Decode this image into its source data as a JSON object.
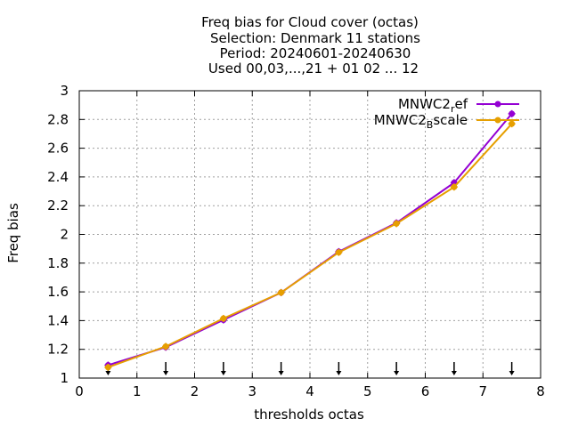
{
  "chart_data": {
    "type": "line",
    "title_lines": [
      "Freq bias  for Cloud cover (octas)",
      "Selection: Denmark     11 stations",
      "Period: 20240601-20240630",
      "Used 00,03,...,21 + 01 02 ... 12"
    ],
    "xlabel": "thresholds octas",
    "ylabel": "Freq bias",
    "xlim": [
      0,
      8
    ],
    "ylim": [
      1,
      3
    ],
    "xticks": [
      "0",
      "1",
      "2",
      "3",
      "4",
      "5",
      "6",
      "7",
      "8"
    ],
    "yticks": [
      "1",
      "1.2",
      "1.4",
      "1.6",
      "1.8",
      "2",
      "2.2",
      "2.4",
      "2.6",
      "2.8",
      "3"
    ],
    "grid": true,
    "legend_position": "top-right",
    "x": [
      0.5,
      1.5,
      2.5,
      3.5,
      4.5,
      5.5,
      6.5,
      7.5
    ],
    "series": [
      {
        "name_main": "MNWC2",
        "name_sub": "r",
        "name_tail": "ef",
        "color": "#9400d3",
        "values": [
          1.09,
          1.215,
          1.405,
          1.595,
          1.88,
          2.08,
          2.36,
          2.84
        ]
      },
      {
        "name_main": "MNWC2",
        "name_sub": "B",
        "name_tail": "scale",
        "color": "#e69f00",
        "values": [
          1.075,
          1.22,
          1.415,
          1.595,
          1.875,
          2.075,
          2.33,
          2.77
        ]
      }
    ],
    "arrow_markers_x": [
      0.5,
      1.5,
      2.5,
      3.5,
      4.5,
      5.5,
      6.5,
      7.5
    ]
  }
}
